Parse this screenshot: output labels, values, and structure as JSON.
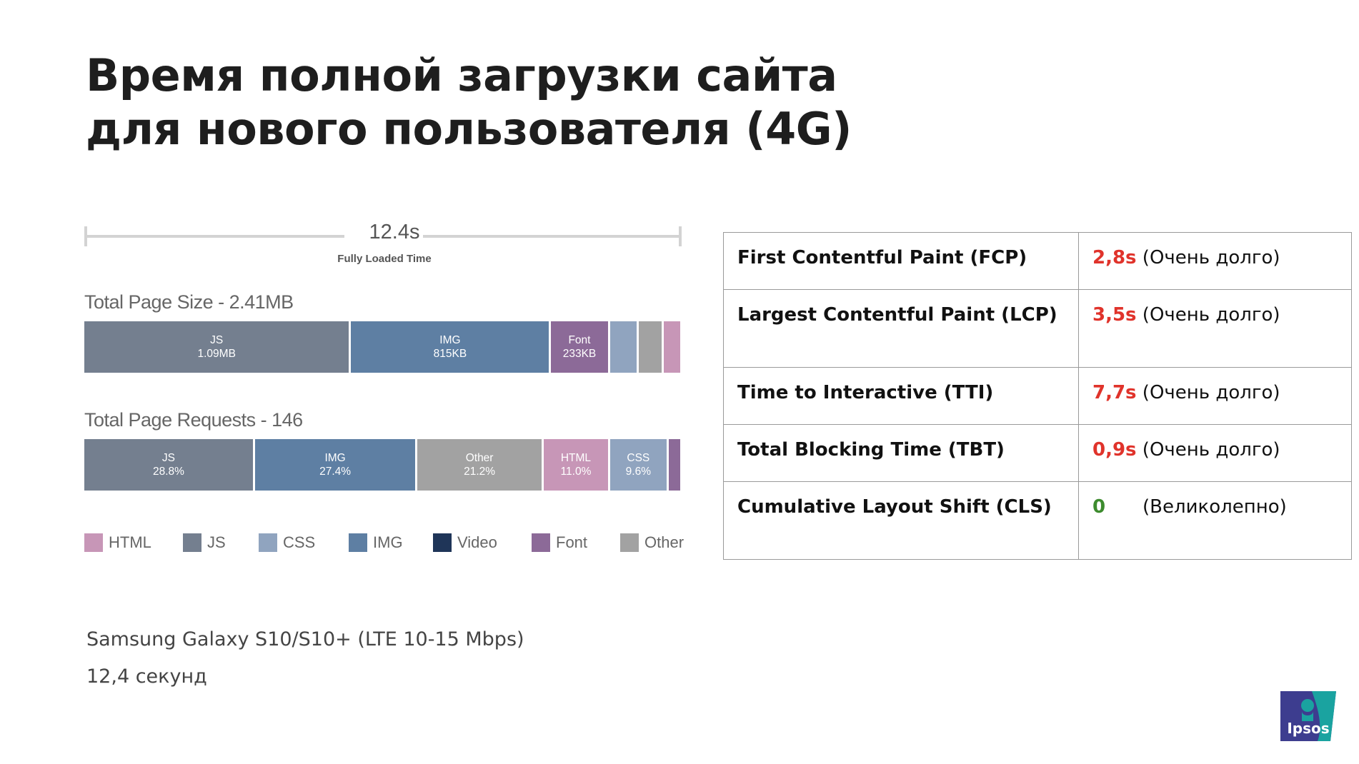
{
  "title": {
    "line1": "Время полной загрузки сайта",
    "line2": "для нового пользователя (4G)"
  },
  "fully_loaded": {
    "value": "12.4s",
    "label": "Fully Loaded Time"
  },
  "colors": {
    "HTML": "#c796b7",
    "JS": "#747f8f",
    "CSS": "#90a4bf",
    "IMG": "#5e7fa3",
    "Video": "#1f3558",
    "Font": "#8c6a98",
    "Other": "#a2a2a2",
    "ruler": "#d3d3d3",
    "bad": "#e0332b",
    "good": "#3d8b2e"
  },
  "chart_data": [
    {
      "type": "bar",
      "title": "Total Page Size - 2.41MB",
      "orientation": "horizontal-stacked",
      "unit": "KB",
      "segments": [
        {
          "category": "JS",
          "value": 1090,
          "label": "JS",
          "value_label": "1.09MB"
        },
        {
          "category": "IMG",
          "value": 815,
          "label": "IMG",
          "value_label": "815KB"
        },
        {
          "category": "Font",
          "value": 233,
          "label": "Font",
          "value_label": "233KB"
        },
        {
          "category": "CSS",
          "value": 110,
          "label": "",
          "value_label": ""
        },
        {
          "category": "Other",
          "value": 95,
          "label": "",
          "value_label": ""
        },
        {
          "category": "HTML",
          "value": 67,
          "label": "",
          "value_label": ""
        }
      ]
    },
    {
      "type": "bar",
      "title": "Total Page Requests - 146",
      "orientation": "horizontal-stacked",
      "unit": "%",
      "segments": [
        {
          "category": "JS",
          "value": 28.8,
          "label": "JS",
          "value_label": "28.8%"
        },
        {
          "category": "IMG",
          "value": 27.4,
          "label": "IMG",
          "value_label": "27.4%"
        },
        {
          "category": "Other",
          "value": 21.2,
          "label": "Other",
          "value_label": "21.2%"
        },
        {
          "category": "HTML",
          "value": 11.0,
          "label": "HTML",
          "value_label": "11.0%"
        },
        {
          "category": "CSS",
          "value": 9.6,
          "label": "CSS",
          "value_label": "9.6%"
        },
        {
          "category": "Font",
          "value": 2.0,
          "label": "",
          "value_label": ""
        }
      ]
    }
  ],
  "legend": [
    "HTML",
    "JS",
    "CSS",
    "IMG",
    "Video",
    "Font",
    "Other"
  ],
  "metrics": [
    {
      "name": "First Contentful Paint (FCP)",
      "value": "2,8s",
      "note": " (Очень долго)",
      "status": "bad"
    },
    {
      "name": "Largest Contentful Paint (LCP)",
      "value": "3,5s",
      "note": " (Очень долго)",
      "status": "bad"
    },
    {
      "name": "Time to Interactive (TTI)",
      "value": "7,7s",
      "note": " (Очень долго)",
      "status": "bad"
    },
    {
      "name": "Total Blocking Time (TBT)",
      "value": "0,9s",
      "note": " (Очень долго)",
      "status": "bad"
    },
    {
      "name": "Cumulative Layout Shift (CLS)",
      "value": "0",
      "note": "(Великолепно)",
      "status": "good"
    }
  ],
  "footer": {
    "device": "Samsung Galaxy S10/S10+ (LTE 10-15 Mbps)",
    "time": "12,4 секунд"
  },
  "logo": {
    "text": "Ipsos",
    "icon": "ipsos-logo-icon"
  }
}
